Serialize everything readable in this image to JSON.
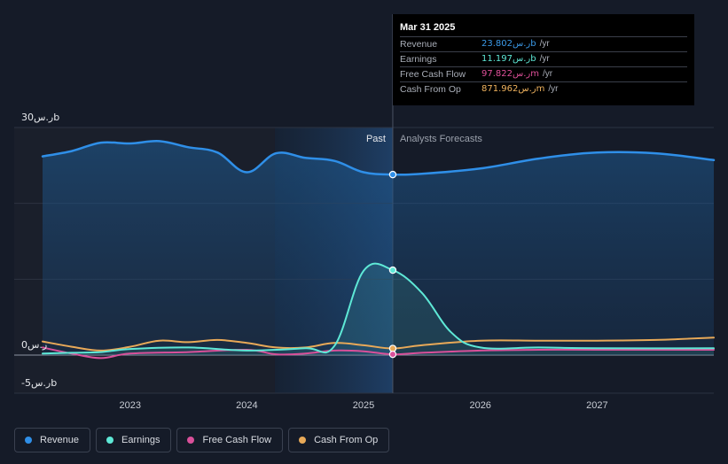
{
  "tooltip": {
    "date": "Mar 31 2025",
    "rows": [
      {
        "label": "Revenue",
        "value": "23.802ر.سb",
        "unit": "/yr",
        "color": "#3b9ae8"
      },
      {
        "label": "Earnings",
        "value": "11.197ر.سb",
        "unit": "/yr",
        "color": "#5ee8d6"
      },
      {
        "label": "Free Cash Flow",
        "value": "97.822ر.سm",
        "unit": "/yr",
        "color": "#e0509a"
      },
      {
        "label": "Cash From Op",
        "value": "871.962ر.سm",
        "unit": "/yr",
        "color": "#f0b35e"
      }
    ]
  },
  "legend": [
    {
      "label": "Revenue",
      "color": "#2f8fe8"
    },
    {
      "label": "Earnings",
      "color": "#5ee8d6"
    },
    {
      "label": "Free Cash Flow",
      "color": "#d9509a"
    },
    {
      "label": "Cash From Op",
      "color": "#e8a958"
    }
  ],
  "chart_data": {
    "type": "line",
    "y_tick_labels": [
      {
        "value": 30,
        "label": "30ر.سb"
      },
      {
        "value": 0,
        "label": "0ر.س"
      },
      {
        "value": -5,
        "label": "-5ر.سb"
      }
    ],
    "ylim": [
      -5,
      30
    ],
    "x_ticks": [
      {
        "value": 2023.0,
        "label": "2023"
      },
      {
        "value": 2024.0,
        "label": "2024"
      },
      {
        "value": 2025.0,
        "label": "2025"
      },
      {
        "value": 2026.0,
        "label": "2026"
      },
      {
        "value": 2027.0,
        "label": "2027"
      }
    ],
    "xlim": [
      2022.25,
      2028.0
    ],
    "past_label": "Past",
    "forecast_label": "Analysts Forecasts",
    "divider_x": 2025.25,
    "highlight_start_x": 2024.24,
    "series": [
      {
        "name": "Revenue",
        "color": "#2f8fe8",
        "points": [
          [
            2022.25,
            26.2
          ],
          [
            2022.5,
            26.9
          ],
          [
            2022.75,
            28.0
          ],
          [
            2023.0,
            27.9
          ],
          [
            2023.25,
            28.2
          ],
          [
            2023.5,
            27.4
          ],
          [
            2023.75,
            26.7
          ],
          [
            2024.0,
            24.1
          ],
          [
            2024.25,
            26.6
          ],
          [
            2024.5,
            26.0
          ],
          [
            2024.75,
            25.6
          ],
          [
            2025.0,
            24.1
          ],
          [
            2025.25,
            23.8
          ],
          [
            2025.5,
            23.9
          ],
          [
            2026.0,
            24.6
          ],
          [
            2026.5,
            25.9
          ],
          [
            2027.0,
            26.7
          ],
          [
            2027.5,
            26.6
          ],
          [
            2028.0,
            25.7
          ]
        ]
      },
      {
        "name": "Earnings",
        "color": "#5ee8d6",
        "points": [
          [
            2022.25,
            0.2
          ],
          [
            2022.5,
            0.3
          ],
          [
            2022.75,
            0.4
          ],
          [
            2023.0,
            0.8
          ],
          [
            2023.5,
            1.0
          ],
          [
            2024.0,
            0.6
          ],
          [
            2024.5,
            0.9
          ],
          [
            2024.75,
            1.2
          ],
          [
            2025.0,
            11.1
          ],
          [
            2025.25,
            11.197
          ],
          [
            2025.5,
            8.2
          ],
          [
            2025.75,
            3.0
          ],
          [
            2026.0,
            1.0
          ],
          [
            2026.5,
            1.0
          ],
          [
            2027.0,
            0.9
          ],
          [
            2028.0,
            0.9
          ]
        ]
      },
      {
        "name": "Free Cash Flow",
        "color": "#d9509a",
        "points": [
          [
            2022.25,
            1.0
          ],
          [
            2022.5,
            0.2
          ],
          [
            2022.75,
            -0.4
          ],
          [
            2023.0,
            0.2
          ],
          [
            2023.5,
            0.4
          ],
          [
            2024.0,
            0.7
          ],
          [
            2024.25,
            0.1
          ],
          [
            2024.5,
            0.2
          ],
          [
            2024.75,
            0.6
          ],
          [
            2025.0,
            0.5
          ],
          [
            2025.25,
            0.098
          ],
          [
            2025.5,
            0.3
          ],
          [
            2026.0,
            0.6
          ],
          [
            2026.5,
            0.7
          ],
          [
            2027.0,
            0.7
          ],
          [
            2028.0,
            0.7
          ]
        ]
      },
      {
        "name": "Cash From Op",
        "color": "#e8a958",
        "points": [
          [
            2022.25,
            1.8
          ],
          [
            2022.5,
            1.1
          ],
          [
            2022.75,
            0.6
          ],
          [
            2023.0,
            1.1
          ],
          [
            2023.25,
            1.9
          ],
          [
            2023.5,
            1.7
          ],
          [
            2023.75,
            2.0
          ],
          [
            2024.0,
            1.6
          ],
          [
            2024.25,
            1.0
          ],
          [
            2024.5,
            1.0
          ],
          [
            2024.75,
            1.6
          ],
          [
            2025.0,
            1.3
          ],
          [
            2025.25,
            0.872
          ],
          [
            2025.5,
            1.3
          ],
          [
            2026.0,
            1.9
          ],
          [
            2026.5,
            1.9
          ],
          [
            2027.0,
            1.9
          ],
          [
            2027.5,
            2.0
          ],
          [
            2028.0,
            2.3
          ]
        ]
      }
    ],
    "highlight_points": [
      {
        "series": "Revenue",
        "x": 2025.25,
        "y": 23.8
      },
      {
        "series": "Earnings",
        "x": 2025.25,
        "y": 11.197
      },
      {
        "series": "Cash From Op",
        "x": 2025.25,
        "y": 0.872
      },
      {
        "series": "Free Cash Flow",
        "x": 2025.25,
        "y": 0.098
      }
    ]
  }
}
